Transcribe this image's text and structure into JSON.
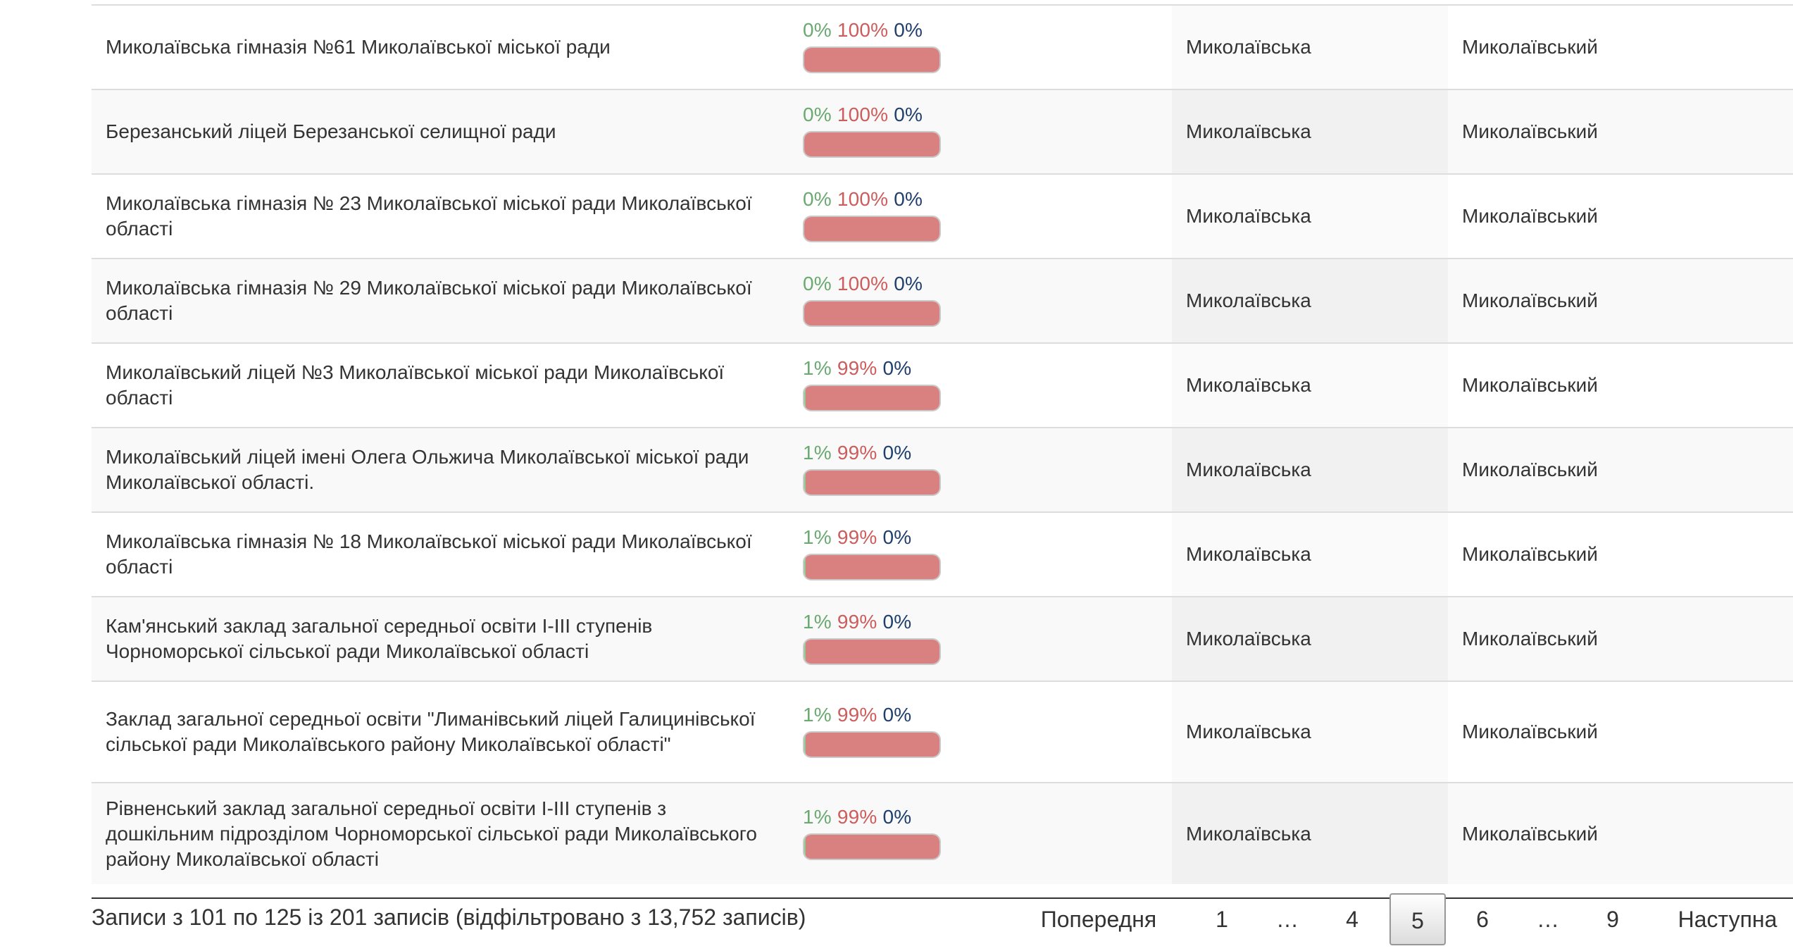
{
  "rows": [
    {
      "name": "Миколаївська гімназія №61 Миколаївської міської ради",
      "pct": [
        "0%",
        "100%",
        "0%"
      ],
      "fractions": [
        0,
        1,
        0
      ],
      "region": "Миколаївська",
      "district": "Миколаївський"
    },
    {
      "name": "Березанський ліцей Березанської селищної ради",
      "pct": [
        "0%",
        "100%",
        "0%"
      ],
      "fractions": [
        0,
        1,
        0
      ],
      "region": "Миколаївська",
      "district": "Миколаївський"
    },
    {
      "name": "Миколаївська гімназія № 23 Миколаївської міської ради Миколаївської області",
      "pct": [
        "0%",
        "100%",
        "0%"
      ],
      "fractions": [
        0,
        1,
        0
      ],
      "region": "Миколаївська",
      "district": "Миколаївський"
    },
    {
      "name": "Миколаївська гімназія № 29 Миколаївської міської ради Миколаївської області",
      "pct": [
        "0%",
        "100%",
        "0%"
      ],
      "fractions": [
        0,
        1,
        0
      ],
      "region": "Миколаївська",
      "district": "Миколаївський"
    },
    {
      "name": "Миколаївський ліцей №3 Миколаївської міської ради Миколаївської області",
      "pct": [
        "1%",
        "99%",
        "0%"
      ],
      "fractions": [
        0.01,
        0.99,
        0
      ],
      "region": "Миколаївська",
      "district": "Миколаївський"
    },
    {
      "name": "Миколаївський ліцей імені Олега Ольжича Миколаївської міської ради Миколаївської області.",
      "pct": [
        "1%",
        "99%",
        "0%"
      ],
      "fractions": [
        0.01,
        0.99,
        0
      ],
      "region": "Миколаївська",
      "district": "Миколаївський"
    },
    {
      "name": "Миколаївська гімназія № 18 Миколаївської міської ради Миколаївської області",
      "pct": [
        "1%",
        "99%",
        "0%"
      ],
      "fractions": [
        0.01,
        0.99,
        0
      ],
      "region": "Миколаївська",
      "district": "Миколаївський"
    },
    {
      "name": "Кам'янський заклад загальної середньої освіти І-ІІІ ступенів Чорноморської сільської ради Миколаївської області",
      "pct": [
        "1%",
        "99%",
        "0%"
      ],
      "fractions": [
        0.01,
        0.99,
        0
      ],
      "region": "Миколаївська",
      "district": "Миколаївський"
    },
    {
      "name": "Заклад загальної середньої освіти \"Лиманівський ліцей Галицинівської сільської ради Миколаївського району Миколаївської області\"",
      "pct": [
        "1%",
        "99%",
        "0%"
      ],
      "fractions": [
        0.01,
        0.99,
        0
      ],
      "region": "Миколаївська",
      "district": "Миколаївський"
    },
    {
      "name": "Рівненський заклад загальної середньої освіти І-ІІІ ступенів з дошкільним підрозділом Чорноморської сільської ради Миколаївського району Миколаївської області",
      "pct": [
        "1%",
        "99%",
        "0%"
      ],
      "fractions": [
        0.01,
        0.99,
        0
      ],
      "region": "Миколаївська",
      "district": "Миколаївський"
    }
  ],
  "footer": {
    "info": "Записи з 101 по 125 із 201 записів (відфільтровано з 13,752 записів)"
  },
  "pagination": {
    "previous": "Попередня",
    "next": "Наступна",
    "pages": [
      "1",
      "…",
      "4",
      "5",
      "6",
      "…",
      "9"
    ],
    "current": "5"
  },
  "colors": {
    "green": "#6aa96f",
    "red": "#cd5c5c",
    "blue": "#1f3f6e"
  }
}
